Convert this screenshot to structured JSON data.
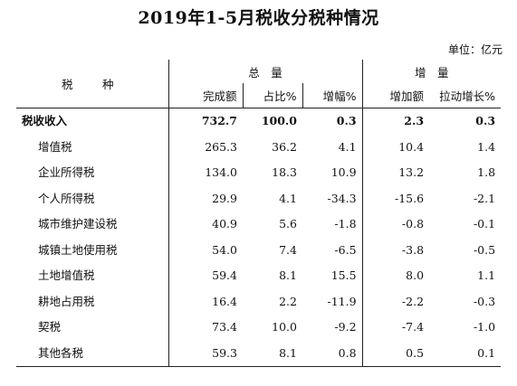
{
  "title": "2019年1-5月税收分税种情况",
  "unit": "单位：亿元",
  "table": {
    "row_header": "税　种",
    "groups": [
      {
        "label": "总　量"
      },
      {
        "label": "增　量"
      }
    ],
    "columns": [
      "完成额",
      "占比%",
      "增幅%",
      "增加额",
      "拉动增长%"
    ],
    "rows": [
      {
        "name": "税收收入",
        "values": [
          "732.7",
          "100.0",
          "0.3",
          "2.3",
          "0.3"
        ]
      },
      {
        "name": "增值税",
        "values": [
          "265.3",
          "36.2",
          "4.1",
          "10.4",
          "1.4"
        ]
      },
      {
        "name": "企业所得税",
        "values": [
          "134.0",
          "18.3",
          "10.9",
          "13.2",
          "1.8"
        ]
      },
      {
        "name": "个人所得税",
        "values": [
          "29.9",
          "4.1",
          "-34.3",
          "-15.6",
          "-2.1"
        ]
      },
      {
        "name": "城市维护建设税",
        "values": [
          "40.9",
          "5.6",
          "-1.8",
          "-0.8",
          "-0.1"
        ]
      },
      {
        "name": "城镇土地使用税",
        "values": [
          "54.0",
          "7.4",
          "-6.5",
          "-3.8",
          "-0.5"
        ]
      },
      {
        "name": "土地增值税",
        "values": [
          "59.4",
          "8.1",
          "15.5",
          "8.0",
          "1.1"
        ]
      },
      {
        "name": "耕地占用税",
        "values": [
          "16.4",
          "2.2",
          "-11.9",
          "-2.2",
          "-0.3"
        ]
      },
      {
        "name": "契税",
        "values": [
          "73.4",
          "10.0",
          "-9.2",
          "-7.4",
          "-1.0"
        ]
      },
      {
        "name": "其他各税",
        "values": [
          "59.3",
          "8.1",
          "0.8",
          "0.5",
          "0.1"
        ]
      }
    ]
  }
}
